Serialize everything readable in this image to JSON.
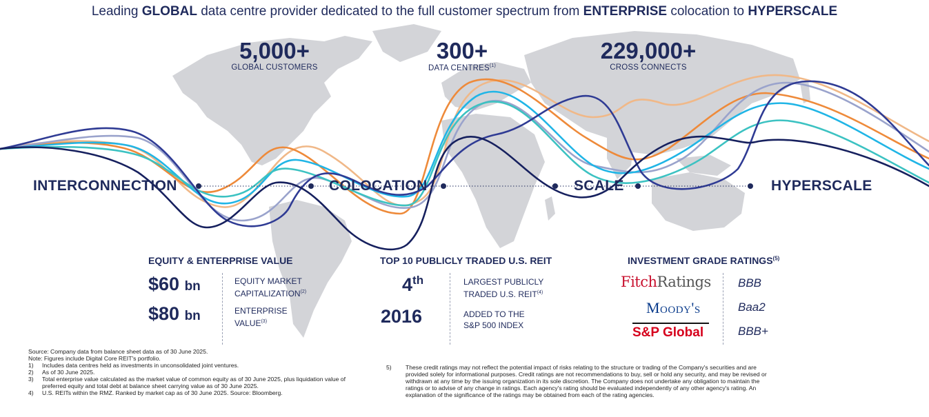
{
  "headline": {
    "prefix": "Leading ",
    "bold1": "GLOBAL",
    "middle": " data centre provider dedicated to the full customer spectrum from ",
    "bold2": "ENTERPRISE",
    "middle2": " colocation to ",
    "bold3": "HYPERSCALE"
  },
  "stats": [
    {
      "value": "5,000+",
      "label": "GLOBAL CUSTOMERS",
      "sup": ""
    },
    {
      "value": "300+",
      "label": "DATA CENTRES",
      "sup": "(1)"
    },
    {
      "value": "229,000+",
      "label": "CROSS CONNECTS",
      "sup": ""
    }
  ],
  "stages": [
    "INTERCONNECTION",
    "COLOCATION",
    "SCALE",
    "HYPERSCALE"
  ],
  "wave_colors": [
    "#f0b888",
    "#ee8a3a",
    "#9aa3cc",
    "#20b5e6",
    "#3cc2c2",
    "#2f3b94",
    "#16205e"
  ],
  "equity": {
    "title": "EQUITY & ENTERPRISE VALUE",
    "rows": [
      {
        "value": "$60",
        "unit": "bn",
        "desc1": "EQUITY MARKET",
        "desc2": "CAPITALIZATION",
        "sup": "(2)"
      },
      {
        "value": "$80",
        "unit": "bn",
        "desc1": "ENTERPRISE",
        "desc2": "VALUE",
        "sup": "(3)"
      }
    ]
  },
  "reit": {
    "title": "TOP 10 PUBLICLY TRADED U.S. REIT",
    "rows": [
      {
        "value": "4",
        "sup_value": "th",
        "desc1": "LARGEST PUBLICLY",
        "desc2": "TRADED U.S. REIT",
        "sup": "(4)"
      },
      {
        "value": "2016",
        "sup_value": "",
        "desc1": "ADDED TO THE",
        "desc2": "S&P 500 INDEX",
        "sup": ""
      }
    ]
  },
  "ratings": {
    "title": "INVESTMENT GRADE RATINGS",
    "title_sup": "(5)",
    "agencies": [
      {
        "logo_a": "Fitch",
        "logo_b": "Ratings",
        "rating": "BBB"
      },
      {
        "logo": "Moody's",
        "rating": "Baa2"
      },
      {
        "logo": "S&P Global",
        "rating": "BBB+"
      }
    ]
  },
  "footnotes_left": {
    "source": "Source: Company data from balance sheet data as of 30 June 2025.",
    "note": "Note: Figures include Digital Core REIT's portfolio.",
    "items": [
      {
        "num": "1)",
        "text": "Includes data centres held as investments in unconsolidated joint ventures."
      },
      {
        "num": "2)",
        "text": "As of 30 June 2025."
      },
      {
        "num": "3)",
        "text": "Total enterprise value calculated as the market value of common equity as of 30 June 2025, plus liquidation value of preferred equity and total debt at balance sheet carrying value as of 30 June 2025."
      },
      {
        "num": "4)",
        "text": "U.S. REITs within the RMZ.  Ranked by market cap as of 30 June 2025.  Source: Bloomberg."
      }
    ]
  },
  "footnotes_right": {
    "num": "5)",
    "text": "These credit ratings may not reflect the potential impact of risks relating to the structure or trading of the Company's securities and are provided solely for informational purposes.  Credit ratings are not recommendations to buy, sell or hold any security, and may be revised or withdrawn at any time by the issuing organization in its sole discretion.  The Company does not undertake any obligation to maintain the ratings or to advise of any change in ratings.  Each agency's rating should be evaluated independently of any other agency's rating.  An explanation of the significance of the ratings may be obtained from each of the rating agencies."
  }
}
